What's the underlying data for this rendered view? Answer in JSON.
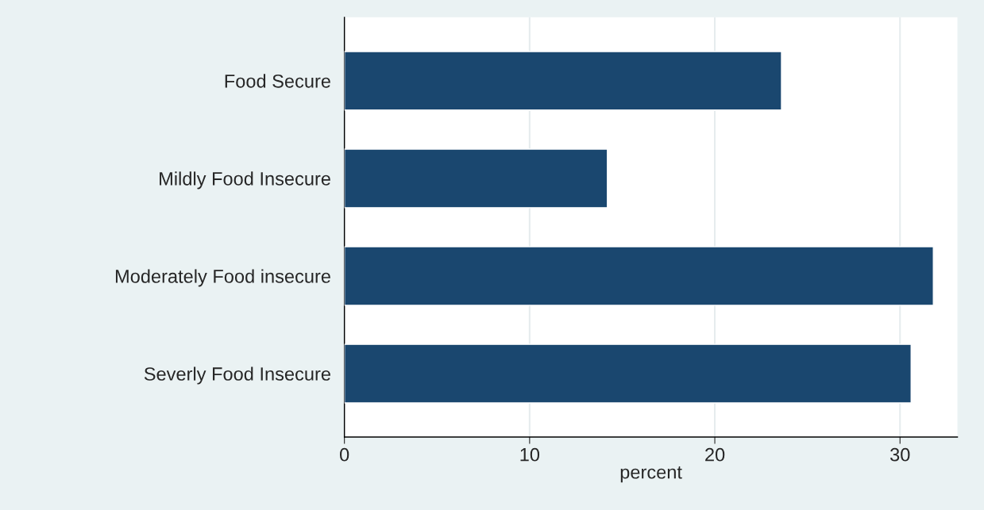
{
  "chart_data": {
    "type": "bar",
    "orientation": "horizontal",
    "xlabel": "percent",
    "categories": [
      "Food Secure",
      "Mildly Food Insecure",
      "Moderately Food insecure",
      "Severly Food Insecure"
    ],
    "values": [
      23.6,
      14.2,
      31.8,
      30.6
    ],
    "color": "#1a476f",
    "xlim": [
      0,
      33.1
    ],
    "xticks": [
      0,
      10,
      20,
      30
    ],
    "grid": "x"
  }
}
